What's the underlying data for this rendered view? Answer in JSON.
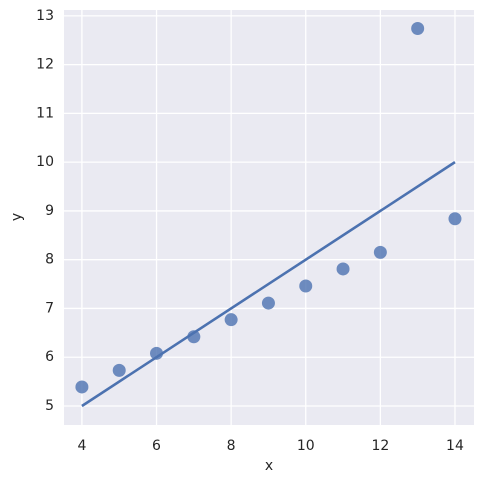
{
  "chart_data": {
    "type": "scatter",
    "x_label": "x",
    "y_label": "y",
    "xlim": [
      3.52,
      14.51
    ],
    "ylim": [
      4.61,
      13.12
    ],
    "xticks": [
      4,
      6,
      8,
      10,
      12,
      14
    ],
    "yticks": [
      5,
      6,
      7,
      8,
      9,
      10,
      11,
      12,
      13
    ],
    "grid": true,
    "series": [
      {
        "color": "#4c72b0",
        "x": [
          4,
          5,
          6,
          7,
          8,
          9,
          10,
          11,
          12,
          13,
          14
        ],
        "values": [
          5.39,
          5.73,
          6.08,
          6.42,
          6.77,
          7.11,
          7.46,
          7.81,
          8.15,
          12.74,
          8.84
        ]
      }
    ],
    "fit_line": {
      "color": "#4c72b0",
      "x": [
        4,
        14
      ],
      "values": [
        5,
        10
      ]
    }
  }
}
